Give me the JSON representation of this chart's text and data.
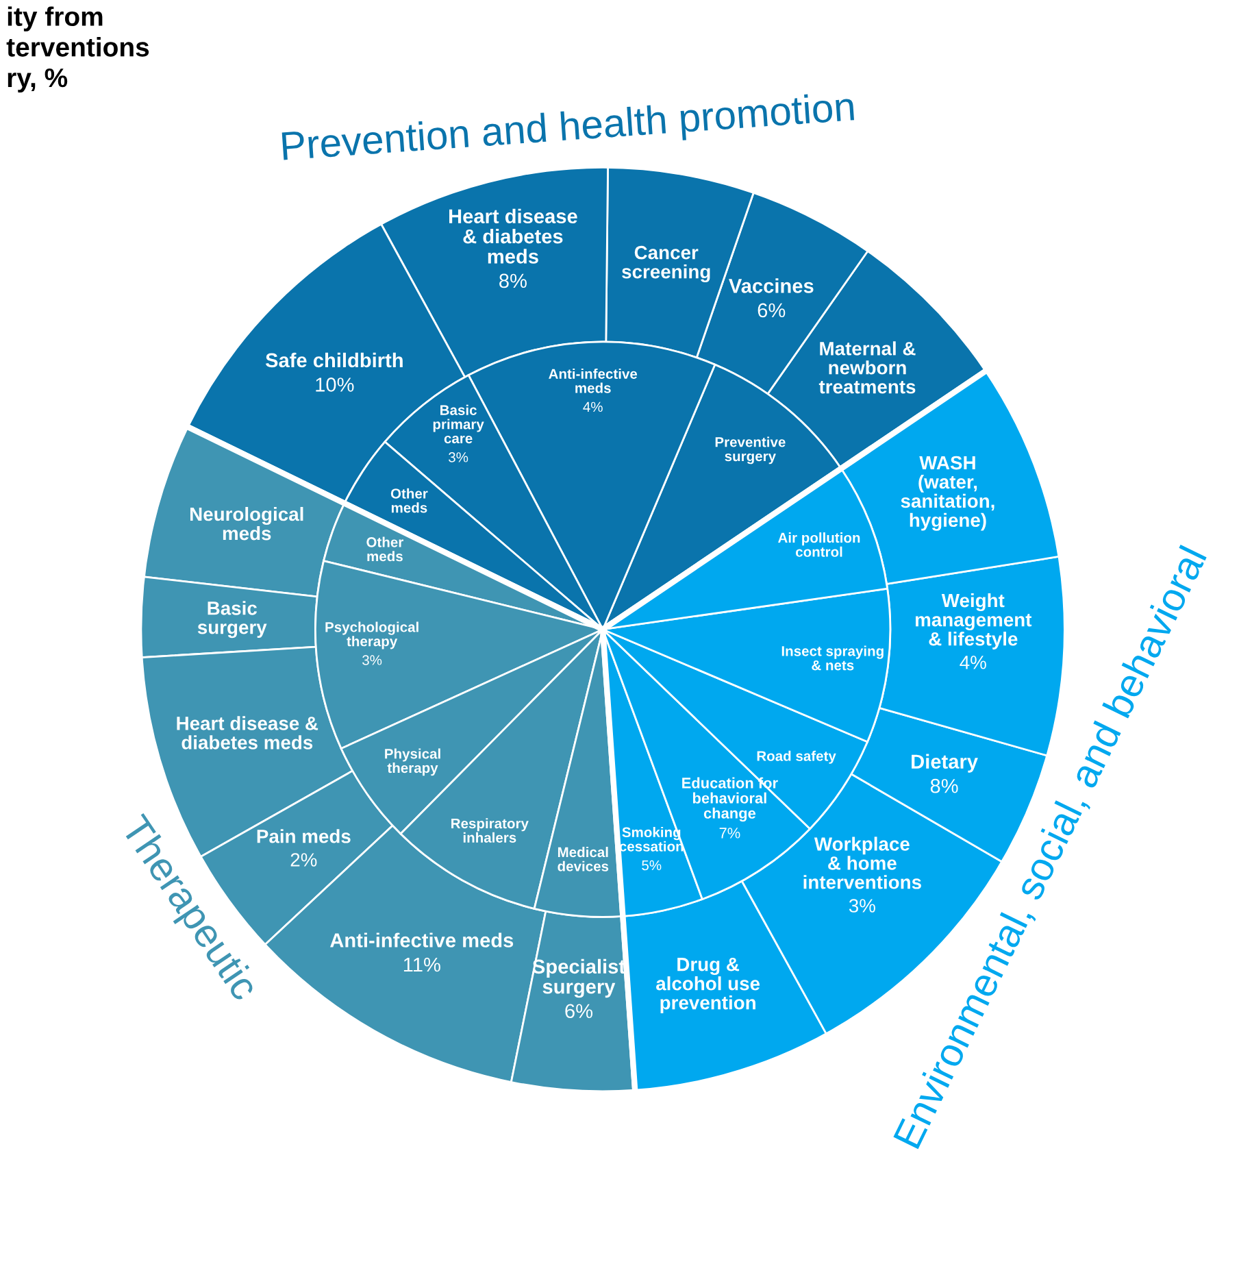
{
  "chart_data": [
    {
      "type": "other",
      "title": "Prevention and health promotion",
      "annotations": [
        "ity from\nterventions\nry, %"
      ],
      "categories": [
        "Maternal &\nnewborn\ntreatments",
        "Vaccines",
        "Cancer\nscreening",
        "Heart disease\n& diabetes\nmeds",
        "Safe childbirth",
        "Preventive\nsurgery",
        "Anti-infective\nmeds",
        "Basic\nprimary\ncare",
        "Other\nmeds"
      ],
      "values": [
        null,
        6,
        null,
        8,
        10,
        null,
        4,
        3,
        null
      ],
      "value_labels": [
        null,
        "6%",
        null,
        "8%",
        "10%",
        null,
        "4%",
        "3%",
        null
      ],
      "colors": [
        "#0a74ac",
        "#0a74ac",
        "#0a74ac",
        "#0a74ac",
        "#0a74ac",
        "#0a74ac",
        "#0a74ac",
        "#0a74ac",
        "#0a74ac"
      ]
    },
    {
      "type": "other",
      "title": "Therapeutic",
      "categories": [
        "Neurological\nmeds",
        "Basic\nsurgery",
        "Heart disease &\ndiabetes meds",
        "Pain meds",
        "Anti-infective meds",
        "Specialist\nsurgery",
        "Other\nmeds",
        "Psychological\ntherapy",
        "Physical\ntherapy",
        "Respiratory\ninhalers",
        "Medical\ndevices"
      ],
      "values": [
        null,
        null,
        null,
        2,
        11,
        6,
        null,
        3,
        null,
        null,
        null
      ],
      "value_labels": [
        null,
        null,
        null,
        "2%",
        "11%",
        "6%",
        null,
        "3%",
        null,
        null,
        null
      ],
      "colors": [
        "#3f95b3",
        "#3f95b3",
        "#3f95b3",
        "#3f95b3",
        "#3f95b3",
        "#3f95b3",
        "#3f95b3",
        "#3f95b3",
        "#3f95b3",
        "#3f95b3",
        "#3f95b3"
      ]
    },
    {
      "type": "other",
      "title": "Environmental, social, and behavioral",
      "categories": [
        "Drug &\nalcohol use\nprevention",
        "Workplace\n& home\ninterventions",
        "Dietary",
        "Weight\nmanagement\n& lifestyle",
        "WASH\n(water,\nsanitation,\nhygiene)",
        "Smoking\ncessation",
        "Education for\nbehavioral\nchange",
        "Road safety",
        "Insect spraying\n& nets",
        "Air pollution\ncontrol"
      ],
      "values": [
        null,
        3,
        8,
        4,
        null,
        5,
        7,
        null,
        null,
        null
      ],
      "value_labels": [
        null,
        "3%",
        "8%",
        "4%",
        null,
        "5%",
        "7%",
        null,
        null,
        null
      ],
      "colors": [
        "#00a8ef",
        "#00a8ef",
        "#00a8ef",
        "#00a8ef",
        "#00a8ef",
        "#00a8ef",
        "#00a8ef",
        "#00a8ef",
        "#00a8ef",
        "#00a8ef"
      ]
    }
  ]
}
